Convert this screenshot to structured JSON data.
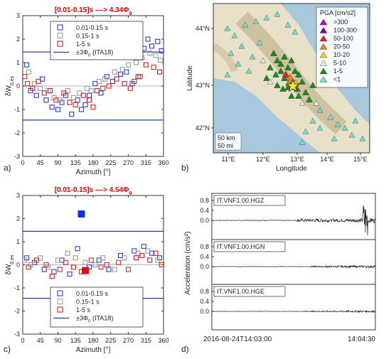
{
  "chart_data": [
    {
      "id": "a",
      "type": "scatter",
      "panel_label": "a)",
      "title": "[0.01-0.15]s ––> 4.34Φ0",
      "xlabel": "Azimuth [°]",
      "ylabel": "δW0,es",
      "xlim": [
        0,
        360
      ],
      "ylim": [
        -3,
        3
      ],
      "xticks": [
        "0",
        "45",
        "90",
        "135",
        "180",
        "225",
        "270",
        "315",
        "360"
      ],
      "yticks": [
        "-3",
        "-2",
        "-1",
        "0",
        "1",
        "2",
        "3"
      ],
      "hlines": [
        1.45,
        -1.45,
        0
      ],
      "legend": [
        "0.01-0.15 s",
        "0.15-1 s",
        "1-5 s",
        "±3Φ0 (ITA18)"
      ],
      "series": [
        {
          "name": "0.01-0.15 s",
          "color": "#2a3fd0",
          "points": [
            [
              10,
              0.9
            ],
            [
              20,
              -0.2
            ],
            [
              35,
              -0.4
            ],
            [
              50,
              0.3
            ],
            [
              60,
              -0.6
            ],
            [
              75,
              -0.9
            ],
            [
              90,
              -1.0
            ],
            [
              100,
              -0.7
            ],
            [
              110,
              -0.4
            ],
            [
              125,
              -1.2
            ],
            [
              140,
              -0.6
            ],
            [
              150,
              -1.0
            ],
            [
              160,
              -0.8
            ],
            [
              170,
              -0.4
            ],
            [
              185,
              0.1
            ],
            [
              200,
              -0.3
            ],
            [
              215,
              0.4
            ],
            [
              230,
              0.2
            ],
            [
              250,
              0.5
            ],
            [
              265,
              0.6
            ],
            [
              280,
              0.1
            ],
            [
              295,
              0.4
            ],
            [
              310,
              1.6
            ],
            [
              320,
              2.0
            ],
            [
              330,
              1.7
            ],
            [
              345,
              1.9
            ],
            [
              355,
              1.5
            ]
          ]
        },
        {
          "name": "0.15-1 s",
          "color": "#9a9a9a",
          "points": [
            [
              15,
              0.6
            ],
            [
              30,
              0.1
            ],
            [
              45,
              -0.1
            ],
            [
              65,
              -0.2
            ],
            [
              80,
              -0.5
            ],
            [
              95,
              -0.6
            ],
            [
              115,
              -0.2
            ],
            [
              130,
              -0.5
            ],
            [
              145,
              -0.3
            ],
            [
              165,
              -0.1
            ],
            [
              175,
              -0.2
            ],
            [
              195,
              0.2
            ],
            [
              210,
              0.3
            ],
            [
              235,
              0.6
            ],
            [
              255,
              0.7
            ],
            [
              270,
              0.9
            ],
            [
              290,
              1.0
            ],
            [
              305,
              1.2
            ],
            [
              325,
              1.4
            ],
            [
              340,
              1.3
            ],
            [
              352,
              1.1
            ]
          ]
        },
        {
          "name": "1-5 s",
          "color": "#d42020",
          "points": [
            [
              5,
              0.4
            ],
            [
              12,
              0.1
            ],
            [
              25,
              -0.1
            ],
            [
              40,
              0.2
            ],
            [
              55,
              -0.3
            ],
            [
              70,
              -0.2
            ],
            [
              85,
              -0.6
            ],
            [
              105,
              -0.3
            ],
            [
              120,
              -0.7
            ],
            [
              135,
              -0.8
            ],
            [
              155,
              -0.4
            ],
            [
              170,
              -0.6
            ],
            [
              180,
              -0.9
            ],
            [
              190,
              -0.2
            ],
            [
              205,
              -0.1
            ],
            [
              220,
              0.0
            ],
            [
              240,
              0.3
            ],
            [
              260,
              0.1
            ],
            [
              275,
              -0.1
            ],
            [
              285,
              0.2
            ],
            [
              300,
              0.4
            ],
            [
              315,
              0.9
            ],
            [
              335,
              0.8
            ],
            [
              350,
              0.6
            ]
          ]
        }
      ]
    },
    {
      "id": "c",
      "type": "scatter",
      "panel_label": "c)",
      "title": "[0.01-0.15]s ––> 4.54Φ0",
      "xlabel": "Azimuth [°]",
      "ylabel": "δW0,es",
      "xlim": [
        0,
        360
      ],
      "ylim": [
        -3,
        3
      ],
      "xticks": [
        "0",
        "45",
        "90",
        "135",
        "180",
        "225",
        "270",
        "315",
        "360"
      ],
      "yticks": [
        "-3",
        "-2",
        "-1",
        "0",
        "1",
        "2",
        "3"
      ],
      "hlines": [
        1.45,
        -1.45,
        0
      ],
      "legend": [
        "0.01-0.15 s",
        "0.15-1 s",
        "1-5 s",
        "±3Φ0 (ITA18)"
      ],
      "highlight": [
        [
          150,
          2.2,
          "#1030e0"
        ],
        [
          160,
          -0.25,
          "#e01010"
        ]
      ],
      "series": [
        {
          "name": "0.01-0.15 s",
          "color": "#2a3fd0",
          "points": [
            [
              10,
              0.3
            ],
            [
              30,
              0.1
            ],
            [
              55,
              -0.2
            ],
            [
              80,
              -0.3
            ],
            [
              100,
              0.2
            ],
            [
              120,
              -0.4
            ],
            [
              140,
              0.7
            ],
            [
              170,
              -0.1
            ],
            [
              195,
              0.2
            ],
            [
              220,
              -0.2
            ],
            [
              250,
              0.4
            ],
            [
              285,
              0.6
            ],
            [
              310,
              0.8
            ],
            [
              330,
              0.5
            ],
            [
              350,
              0.3
            ]
          ]
        },
        {
          "name": "0.15-1 s",
          "color": "#9a9a9a",
          "points": [
            [
              5,
              0.2
            ],
            [
              20,
              0.0
            ],
            [
              45,
              0.3
            ],
            [
              65,
              -0.1
            ],
            [
              90,
              0.2
            ],
            [
              115,
              0.5
            ],
            [
              135,
              0.3
            ],
            [
              160,
              0.1
            ],
            [
              185,
              0.0
            ],
            [
              205,
              0.3
            ],
            [
              235,
              -0.2
            ],
            [
              260,
              0.3
            ],
            [
              295,
              0.5
            ],
            [
              320,
              0.6
            ],
            [
              345,
              0.2
            ]
          ]
        },
        {
          "name": "1-5 s",
          "color": "#d42020",
          "points": [
            [
              15,
              -0.1
            ],
            [
              35,
              0.2
            ],
            [
              60,
              0.0
            ],
            [
              75,
              -0.5
            ],
            [
              95,
              -0.2
            ],
            [
              110,
              0.1
            ],
            [
              130,
              -0.1
            ],
            [
              150,
              -0.3
            ],
            [
              175,
              0.2
            ],
            [
              200,
              -0.1
            ],
            [
              215,
              0.0
            ],
            [
              245,
              0.1
            ],
            [
              270,
              -0.2
            ],
            [
              290,
              0.3
            ],
            [
              305,
              0.4
            ],
            [
              325,
              0.2
            ],
            [
              340,
              0.5
            ],
            [
              355,
              0.0
            ]
          ]
        }
      ]
    },
    {
      "id": "b",
      "type": "map",
      "panel_label": "b)",
      "xlabel": "Longitude",
      "ylabel": "Latitude",
      "xticks": [
        "11°E",
        "12°E",
        "13°E",
        "14°E",
        "15°E"
      ],
      "yticks": [
        "44°N",
        "43°N",
        "42°N"
      ],
      "scale": [
        "50 km",
        "50 mi"
      ],
      "legend_title": "PGA [cm/s²]",
      "legend": [
        {
          "label": ">300",
          "color": "#c000c0"
        },
        {
          "label": "100-300",
          "color": "#7a00b0"
        },
        {
          "label": "50-100",
          "color": "#e02020"
        },
        {
          "label": "20-50",
          "color": "#f08010"
        },
        {
          "label": "10-20",
          "color": "#f0d020"
        },
        {
          "label": "5-10",
          "color": "#e8e8e8"
        },
        {
          "label": "1-5",
          "color": "#1a8a1a"
        },
        {
          "label": "<1",
          "color": "#70e0d0"
        }
      ]
    },
    {
      "id": "d",
      "type": "line",
      "panel_label": "d)",
      "ylabel": "Acceleration (cm/s²)",
      "yticks": [
        "0.8",
        "0.4",
        "0.0"
      ],
      "x_start": "2016-08-24T14:03:00",
      "x_end": "14:04:30",
      "traces": [
        {
          "name": "IT.VNF1.00.HGZ"
        },
        {
          "name": "IT.VNF1.00.HGN"
        },
        {
          "name": "IT.VNF1.00.HGE"
        }
      ]
    }
  ]
}
